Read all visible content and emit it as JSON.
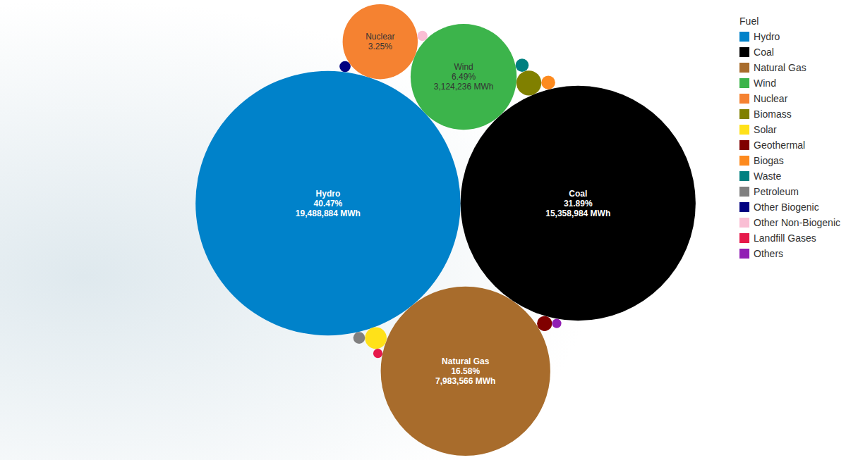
{
  "chart_data": {
    "type": "bubble",
    "legend_title": "Fuel",
    "categories": [
      "Hydro",
      "Coal",
      "Natural Gas",
      "Wind",
      "Nuclear",
      "Biomass",
      "Solar",
      "Geothermal",
      "Biogas",
      "Waste",
      "Petroleum",
      "Other Biogenic",
      "Other Non-Biogenic",
      "Landfill Gases",
      "Others"
    ],
    "values": [
      40.47,
      31.89,
      16.58,
      6.49,
      3.25,
      0.36,
      0.27,
      0.13,
      0.11,
      0.1,
      0.08,
      0.07,
      0.06,
      0.05,
      0.05
    ],
    "value_labels": [
      "40.47%",
      "31.89%",
      "16.58%",
      "6.49%",
      "3.25%",
      null,
      null,
      null,
      null,
      null,
      null,
      null,
      null,
      null,
      null
    ],
    "mwh": [
      19488884,
      15358984,
      7983566,
      3124236,
      null,
      null,
      null,
      null,
      null,
      null,
      null,
      null,
      null,
      null,
      null
    ],
    "mwh_labels": [
      "19,488,884 MWh",
      "15,358,984 MWh",
      "7,983,566 MWh",
      "3,124,236 MWh",
      null,
      null,
      null,
      null,
      null,
      null,
      null,
      null,
      null,
      null,
      null
    ],
    "colors": [
      "#0082ca",
      "#000000",
      "#a86c2c",
      "#3cb44b",
      "#f58231",
      "#808000",
      "#ffe119",
      "#800000",
      "#fd8a1e",
      "#008080",
      "#808080",
      "#000080",
      "#fabed4",
      "#e6194b",
      "#911eb4"
    ],
    "data_labels": true,
    "legend": "right"
  }
}
